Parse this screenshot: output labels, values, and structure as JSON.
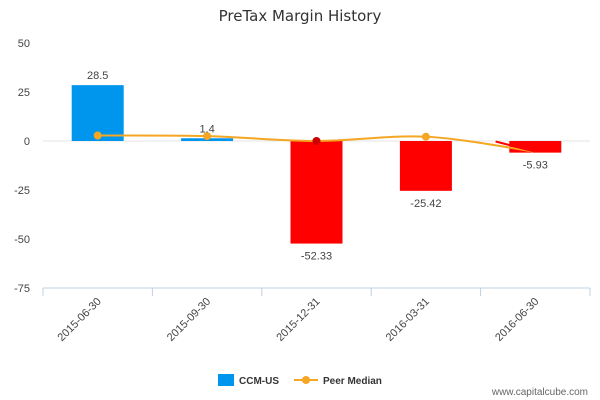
{
  "chart_data": {
    "type": "bar",
    "title": "PreTax Margin History",
    "categories": [
      "2015-06-30",
      "2015-09-30",
      "2015-12-31",
      "2016-03-31",
      "2016-06-30"
    ],
    "series": [
      {
        "name": "CCM-US",
        "kind": "bar",
        "values": [
          28.5,
          1.4,
          -52.33,
          -25.42,
          -5.93
        ],
        "labels": [
          "28.5",
          "1.4",
          "-52.33",
          "-25.42",
          "-5.93"
        ]
      },
      {
        "name": "Peer Median",
        "kind": "line",
        "values": [
          2.8,
          2.5,
          0,
          2.2,
          -5.5
        ]
      }
    ],
    "yticks": [
      "50",
      "25",
      "0",
      "-25",
      "-50",
      "-75"
    ],
    "ylim": [
      -75,
      50
    ],
    "colors": {
      "positive": "#0096ee",
      "negative": "#ff0000",
      "peer": "#f5a623",
      "peer_point_neg": "#cc0000"
    },
    "legend_position": "bottom-center"
  },
  "watermark": "www.capitalcube.com"
}
